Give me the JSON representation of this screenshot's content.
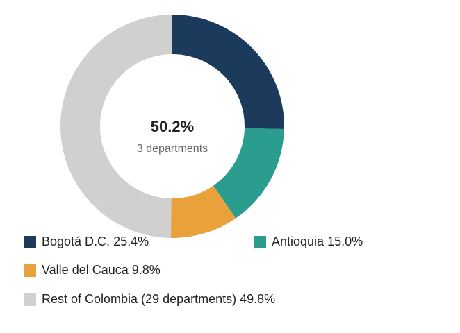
{
  "chart_data": {
    "type": "pie",
    "categories": [
      "Bogotá D.C.",
      "Antioquia",
      "Valle del Cauca",
      "Rest of Colombia (29 departments)"
    ],
    "values": [
      25.4,
      15.0,
      9.8,
      49.8
    ],
    "value_labels": [
      "25.4%",
      "15.0%",
      "9.8%",
      "49.8%"
    ],
    "colors": [
      "#1b3a5c",
      "#2a9d8f",
      "#e9a23b",
      "#d0d0d0"
    ],
    "center_label": "50.2%",
    "center_sublabel": "3 departments"
  }
}
